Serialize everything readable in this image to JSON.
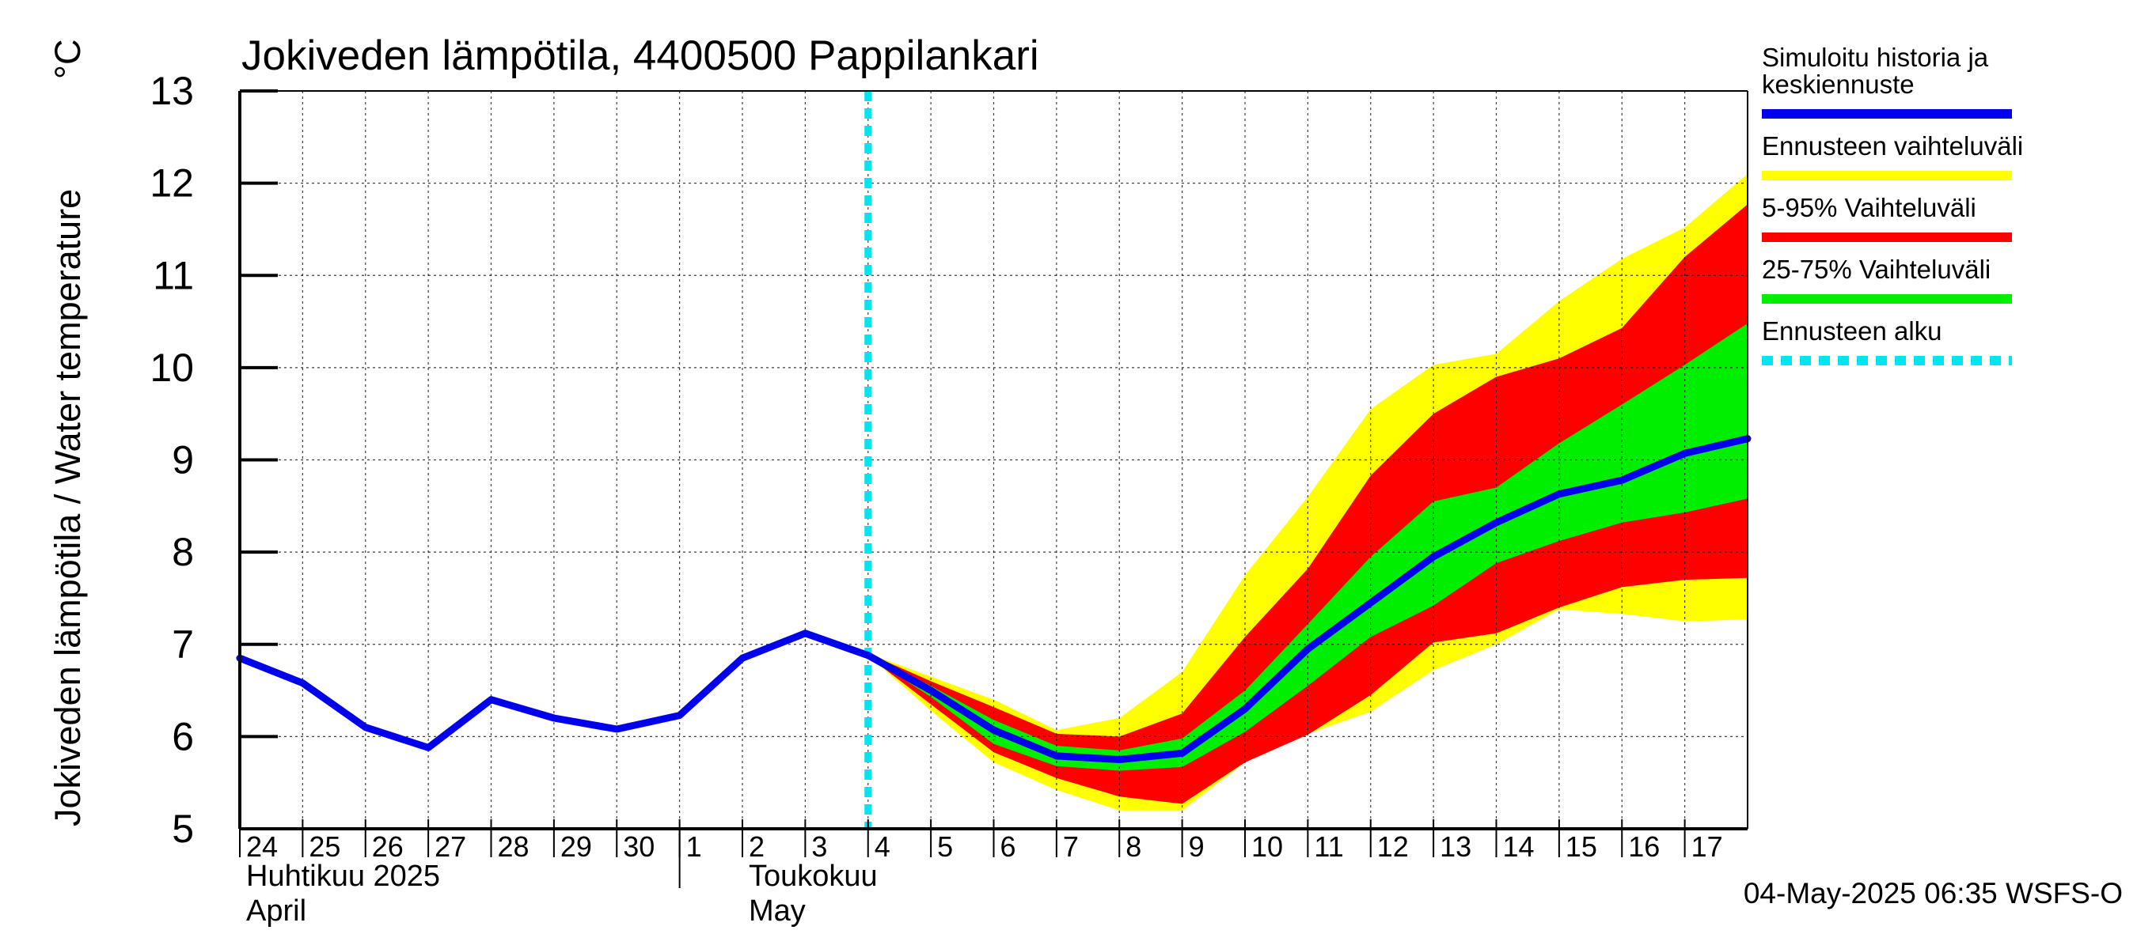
{
  "chart_data": {
    "type": "area",
    "title": "Jokiveden lämpötila, 4400500 Pappilankari",
    "ylabel": "Jokiveden lämpötila / Water temperature",
    "yunit": "°C",
    "ylim": [
      5,
      13
    ],
    "yticks": [
      "5",
      "6",
      "7",
      "8",
      "9",
      "10",
      "11",
      "12",
      "13"
    ],
    "x_start": "2025-04-24",
    "x_end": "2025-05-18",
    "xticks": [
      {
        "date": "2025-04-24",
        "label": "24"
      },
      {
        "date": "2025-04-25",
        "label": "25"
      },
      {
        "date": "2025-04-26",
        "label": "26"
      },
      {
        "date": "2025-04-27",
        "label": "27"
      },
      {
        "date": "2025-04-28",
        "label": "28"
      },
      {
        "date": "2025-04-29",
        "label": "29"
      },
      {
        "date": "2025-04-30",
        "label": "30"
      },
      {
        "date": "2025-05-01",
        "label": "1"
      },
      {
        "date": "2025-05-02",
        "label": "2"
      },
      {
        "date": "2025-05-03",
        "label": "3"
      },
      {
        "date": "2025-05-04",
        "label": "4"
      },
      {
        "date": "2025-05-05",
        "label": "5"
      },
      {
        "date": "2025-05-06",
        "label": "6"
      },
      {
        "date": "2025-05-07",
        "label": "7"
      },
      {
        "date": "2025-05-08",
        "label": "8"
      },
      {
        "date": "2025-05-09",
        "label": "9"
      },
      {
        "date": "2025-05-10",
        "label": "10"
      },
      {
        "date": "2025-05-11",
        "label": "11"
      },
      {
        "date": "2025-05-12",
        "label": "12"
      },
      {
        "date": "2025-05-13",
        "label": "13"
      },
      {
        "date": "2025-05-14",
        "label": "14"
      },
      {
        "date": "2025-05-15",
        "label": "15"
      },
      {
        "date": "2025-05-16",
        "label": "16"
      },
      {
        "date": "2025-05-17",
        "label": "17"
      }
    ],
    "month_labels": [
      {
        "date": "2025-04-24",
        "fi": "Huhtikuu  2025",
        "en": "April"
      },
      {
        "date": "2025-05-02",
        "fi": "Toukokuu",
        "en": "May"
      }
    ],
    "month_boundary": "2025-05-01",
    "grid": true,
    "forecast_start": "2025-05-04",
    "history": {
      "x": [
        "2025-04-24",
        "2025-04-25",
        "2025-04-26",
        "2025-04-27",
        "2025-04-28",
        "2025-04-29",
        "2025-04-30",
        "2025-05-01",
        "2025-05-02",
        "2025-05-03",
        "2025-05-04"
      ],
      "y": [
        6.85,
        6.58,
        6.1,
        5.88,
        6.4,
        6.2,
        6.08,
        6.23,
        6.85,
        7.12,
        6.88
      ]
    },
    "forecast_x": [
      "2025-05-04",
      "2025-05-05",
      "2025-05-06",
      "2025-05-07",
      "2025-05-08",
      "2025-05-09",
      "2025-05-10",
      "2025-05-11",
      "2025-05-12",
      "2025-05-13",
      "2025-05-14",
      "2025-05-15",
      "2025-05-16",
      "2025-05-17",
      "2025-05-18"
    ],
    "forecast_median": [
      6.88,
      6.5,
      6.07,
      5.79,
      5.75,
      5.82,
      6.3,
      6.95,
      7.45,
      7.95,
      8.32,
      8.63,
      8.78,
      9.07,
      9.23
    ],
    "bands": [
      {
        "key": "range",
        "color": "#ffff00",
        "upper": [
          6.9,
          6.65,
          6.4,
          6.07,
          6.2,
          6.7,
          7.75,
          8.6,
          9.55,
          10.03,
          10.15,
          10.72,
          11.18,
          11.52,
          12.1
        ],
        "lower": [
          6.88,
          6.28,
          5.72,
          5.42,
          5.2,
          5.2,
          5.72,
          6.03,
          6.27,
          6.72,
          7.0,
          7.38,
          7.33,
          7.25,
          7.27
        ]
      },
      {
        "key": "p5_95",
        "color": "#ff0000",
        "upper": [
          6.9,
          6.6,
          6.32,
          6.03,
          6.0,
          6.25,
          7.08,
          7.82,
          8.83,
          9.5,
          9.9,
          10.1,
          10.43,
          11.2,
          11.77
        ]
      },
      {
        "key": "p25_75",
        "color": "#00ee00",
        "upper": [
          6.89,
          6.55,
          6.18,
          5.9,
          5.85,
          5.98,
          6.5,
          7.22,
          7.95,
          8.55,
          8.7,
          9.18,
          9.6,
          10.03,
          10.48
        ],
        "lower": [
          6.87,
          6.43,
          5.92,
          5.68,
          5.63,
          5.67,
          6.05,
          6.55,
          7.08,
          7.42,
          7.88,
          8.12,
          8.32,
          8.43,
          8.58
        ]
      }
    ],
    "p5_95_lower": [
      6.87,
      6.35,
      5.83,
      5.55,
      5.35,
      5.27,
      5.72,
      6.02,
      6.45,
      7.02,
      7.12,
      7.4,
      7.62,
      7.7,
      7.72
    ],
    "legend": [
      {
        "label_lines": [
          "Simuloitu historia ja",
          "keskiennuste"
        ],
        "color": "#0000ee",
        "style": "solid"
      },
      {
        "label_lines": [
          "Ennusteen vaihteluväli"
        ],
        "color": "#ffff00",
        "style": "solid"
      },
      {
        "label_lines": [
          "5-95% Vaihteluväli"
        ],
        "color": "#ff0000",
        "style": "solid"
      },
      {
        "label_lines": [
          "25-75% Vaihteluväli"
        ],
        "color": "#00ee00",
        "style": "solid"
      },
      {
        "label_lines": [
          "Ennusteen alku"
        ],
        "color": "#00e5ee",
        "style": "dashed"
      }
    ],
    "legend_position": "right",
    "footer": "04-May-2025 06:35 WSFS-O"
  }
}
